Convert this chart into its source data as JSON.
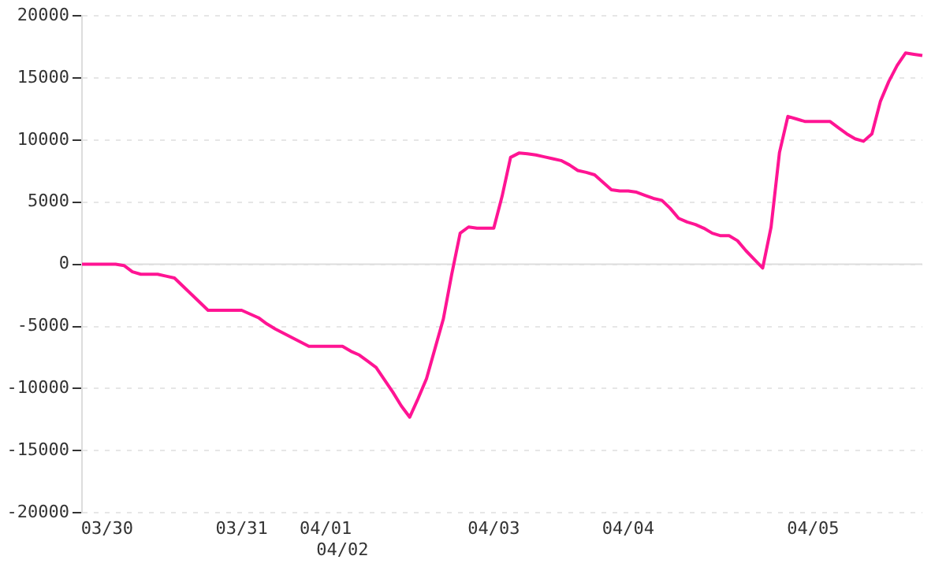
{
  "chart_data": {
    "type": "line",
    "categories": [
      null,
      null,
      null,
      "03/30",
      null,
      null,
      null,
      null,
      null,
      null,
      null,
      null,
      null,
      null,
      null,
      null,
      null,
      null,
      null,
      "03/31",
      null,
      null,
      null,
      null,
      null,
      null,
      null,
      null,
      null,
      "04/01",
      null,
      "04/02",
      null,
      null,
      null,
      null,
      null,
      null,
      null,
      null,
      null,
      null,
      null,
      null,
      null,
      null,
      null,
      null,
      null,
      "04/03",
      null,
      null,
      null,
      null,
      null,
      null,
      null,
      null,
      null,
      null,
      null,
      null,
      null,
      null,
      null,
      "04/04",
      null,
      null,
      null,
      null,
      null,
      null,
      null,
      null,
      null,
      null,
      null,
      null,
      null,
      null,
      null,
      null,
      null,
      null,
      null,
      null,
      null,
      "04/05",
      null,
      null,
      null,
      null,
      null,
      null,
      null,
      null,
      null,
      null,
      null,
      null,
      null
    ],
    "series": [
      {
        "color": "#ff1493",
        "values": [
          0,
          0,
          0,
          0,
          0,
          -100,
          -600,
          -800,
          -800,
          -800,
          -950,
          -1100,
          -1750,
          -2400,
          -3050,
          -3700,
          -3700,
          -3700,
          -3700,
          -3700,
          -4000,
          -4300,
          -4800,
          -5200,
          -5550,
          -5900,
          -6250,
          -6600,
          -6600,
          -6600,
          -6600,
          -6600,
          -7000,
          -7300,
          -7800,
          -8300,
          -9300,
          -10300,
          -11400,
          -12300,
          -10800,
          -9200,
          -6800,
          -4400,
          -800,
          2500,
          3000,
          2900,
          2900,
          2900,
          5500,
          8600,
          8950,
          8900,
          8800,
          8650,
          8500,
          8350,
          8000,
          7550,
          7400,
          7200,
          6600,
          6000,
          5900,
          5900,
          5800,
          5550,
          5300,
          5150,
          4500,
          3700,
          3400,
          3200,
          2900,
          2500,
          2300,
          2300,
          1900,
          1100,
          400,
          -300,
          3000,
          9000,
          11900,
          11700,
          11500,
          11500,
          11500,
          11500,
          11000,
          10500,
          10100,
          9900,
          10500,
          13100,
          14700,
          16000,
          17000,
          16900,
          16800
        ]
      }
    ],
    "ylim": [
      -20000,
      20000
    ],
    "yticks": [
      -20000,
      -15000,
      -10000,
      -5000,
      0,
      5000,
      10000,
      15000,
      20000
    ],
    "grid": "y",
    "legend": false,
    "marker": "none",
    "line_style": "solid",
    "ref_lines": [
      {
        "axis": "y",
        "value": 0,
        "color": "#dddddd"
      }
    ]
  }
}
